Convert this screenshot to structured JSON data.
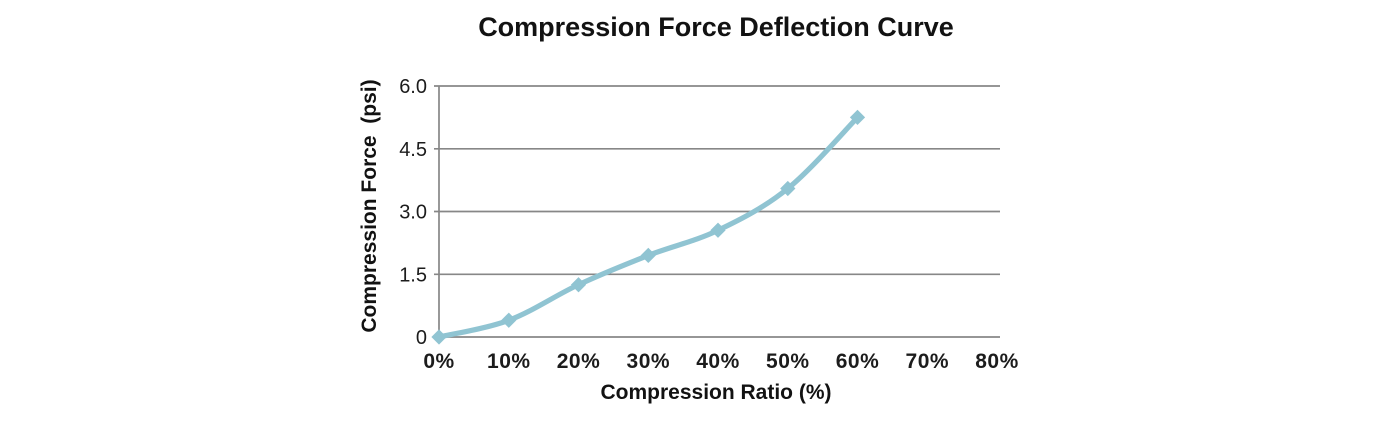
{
  "page": {
    "background_color": "#ffffff"
  },
  "chart_data": {
    "type": "line",
    "title": "Compression Force Deflection Curve",
    "xlabel": "Compression Ratio (%)",
    "ylabel": "Compression Force  (psi)",
    "x": [
      0,
      10,
      20,
      30,
      40,
      50,
      60
    ],
    "values": [
      0,
      0.4,
      1.25,
      1.95,
      2.55,
      3.55,
      5.25
    ],
    "x_tick_values": [
      0,
      10,
      20,
      30,
      40,
      50,
      60,
      70,
      80
    ],
    "x_ticks": [
      "0%",
      "10%",
      "20%",
      "30%",
      "40%",
      "50%",
      "60%",
      "70%",
      "80%"
    ],
    "y_tick_values": [
      0,
      1.5,
      3.0,
      4.5,
      6.0
    ],
    "y_ticks": [
      "0",
      "1.5",
      "3.0",
      "4.5",
      "6.0"
    ],
    "xlim": [
      0,
      80
    ],
    "ylim": [
      0,
      6
    ],
    "grid": "horizontal",
    "legend": "none",
    "line_style": "smooth",
    "marker": "diamond",
    "line_color": "#90c4d2",
    "gridline_color": "#878787",
    "text_color": "#1c1c1c"
  }
}
